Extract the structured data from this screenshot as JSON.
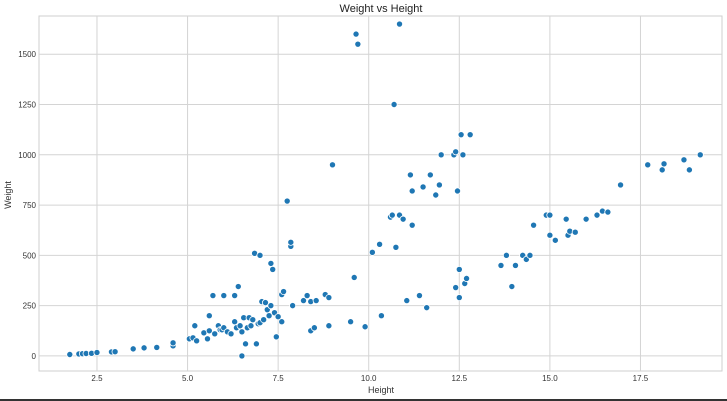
{
  "chart_data": {
    "type": "scatter",
    "title": "Weight vs Height",
    "xlabel": "Height",
    "ylabel": "Weight",
    "xlim": [
      0.9,
      19.75
    ],
    "ylim": [
      -75,
      1690
    ],
    "xticks": [
      2.5,
      5.0,
      7.5,
      10.0,
      12.5,
      15.0,
      17.5
    ],
    "xtick_labels": [
      "2.5",
      "5.0",
      "7.5",
      "10.0",
      "12.5",
      "15.0",
      "17.5"
    ],
    "yticks": [
      0,
      250,
      500,
      750,
      1000,
      1250,
      1500
    ],
    "ytick_labels": [
      "0",
      "250",
      "500",
      "750",
      "1000",
      "1250",
      "1500"
    ],
    "grid": true,
    "point_color": "#1f77b4",
    "points": [
      [
        1.75,
        7
      ],
      [
        2.0,
        10
      ],
      [
        2.1,
        11
      ],
      [
        2.2,
        12
      ],
      [
        2.35,
        13
      ],
      [
        2.5,
        17
      ],
      [
        2.9,
        20
      ],
      [
        3.0,
        21
      ],
      [
        3.5,
        35
      ],
      [
        3.8,
        40
      ],
      [
        4.15,
        42
      ],
      [
        4.6,
        50
      ],
      [
        4.6,
        65
      ],
      [
        5.05,
        85
      ],
      [
        5.15,
        90
      ],
      [
        5.25,
        75
      ],
      [
        5.2,
        150
      ],
      [
        5.45,
        115
      ],
      [
        5.55,
        85
      ],
      [
        5.6,
        125
      ],
      [
        5.6,
        200
      ],
      [
        5.7,
        300
      ],
      [
        5.75,
        110
      ],
      [
        5.85,
        150
      ],
      [
        5.9,
        130
      ],
      [
        5.95,
        130
      ],
      [
        6.0,
        300
      ],
      [
        6.0,
        140
      ],
      [
        6.1,
        120
      ],
      [
        6.2,
        110
      ],
      [
        6.3,
        300
      ],
      [
        6.3,
        170
      ],
      [
        6.35,
        140
      ],
      [
        6.4,
        345
      ],
      [
        6.45,
        150
      ],
      [
        6.5,
        120
      ],
      [
        6.5,
        0
      ],
      [
        6.55,
        190
      ],
      [
        6.6,
        60
      ],
      [
        6.65,
        140
      ],
      [
        6.7,
        190
      ],
      [
        6.75,
        150
      ],
      [
        6.8,
        180
      ],
      [
        6.85,
        510
      ],
      [
        6.9,
        60
      ],
      [
        6.95,
        160
      ],
      [
        7.0,
        500
      ],
      [
        7.0,
        165
      ],
      [
        7.05,
        270
      ],
      [
        7.1,
        180
      ],
      [
        7.15,
        265
      ],
      [
        7.2,
        230
      ],
      [
        7.25,
        200
      ],
      [
        7.3,
        460
      ],
      [
        7.35,
        430
      ],
      [
        7.3,
        250
      ],
      [
        7.4,
        215
      ],
      [
        7.45,
        95
      ],
      [
        7.5,
        195
      ],
      [
        7.6,
        170
      ],
      [
        7.6,
        305
      ],
      [
        7.65,
        320
      ],
      [
        7.75,
        770
      ],
      [
        7.85,
        545
      ],
      [
        7.85,
        565
      ],
      [
        7.9,
        250
      ],
      [
        8.2,
        275
      ],
      [
        8.3,
        300
      ],
      [
        8.4,
        270
      ],
      [
        8.4,
        125
      ],
      [
        8.5,
        140
      ],
      [
        8.55,
        275
      ],
      [
        8.8,
        305
      ],
      [
        8.9,
        150
      ],
      [
        8.9,
        290
      ],
      [
        9.0,
        950
      ],
      [
        9.5,
        170
      ],
      [
        9.6,
        390
      ],
      [
        9.65,
        1600
      ],
      [
        9.7,
        1550
      ],
      [
        9.9,
        145
      ],
      [
        10.1,
        515
      ],
      [
        10.3,
        555
      ],
      [
        10.35,
        200
      ],
      [
        10.6,
        690
      ],
      [
        10.65,
        700
      ],
      [
        10.7,
        1250
      ],
      [
        10.75,
        540
      ],
      [
        10.85,
        1650
      ],
      [
        10.85,
        700
      ],
      [
        10.95,
        680
      ],
      [
        11.05,
        275
      ],
      [
        11.15,
        900
      ],
      [
        11.2,
        820
      ],
      [
        11.2,
        650
      ],
      [
        11.4,
        300
      ],
      [
        11.5,
        840
      ],
      [
        11.6,
        240
      ],
      [
        11.7,
        900
      ],
      [
        11.85,
        800
      ],
      [
        11.95,
        850
      ],
      [
        12.0,
        1000
      ],
      [
        12.35,
        1000
      ],
      [
        12.4,
        1015
      ],
      [
        12.4,
        340
      ],
      [
        12.45,
        820
      ],
      [
        12.5,
        430
      ],
      [
        12.5,
        290
      ],
      [
        12.55,
        1100
      ],
      [
        12.6,
        1000
      ],
      [
        12.65,
        360
      ],
      [
        12.7,
        385
      ],
      [
        12.8,
        1100
      ],
      [
        13.65,
        450
      ],
      [
        13.8,
        500
      ],
      [
        13.95,
        345
      ],
      [
        14.05,
        450
      ],
      [
        14.25,
        500
      ],
      [
        14.35,
        480
      ],
      [
        14.45,
        500
      ],
      [
        14.55,
        650
      ],
      [
        14.9,
        700
      ],
      [
        15.0,
        700
      ],
      [
        15.0,
        600
      ],
      [
        15.15,
        575
      ],
      [
        15.45,
        680
      ],
      [
        15.5,
        600
      ],
      [
        15.55,
        620
      ],
      [
        15.7,
        615
      ],
      [
        16.0,
        680
      ],
      [
        16.3,
        700
      ],
      [
        16.45,
        720
      ],
      [
        16.6,
        715
      ],
      [
        16.95,
        850
      ],
      [
        17.7,
        950
      ],
      [
        18.1,
        925
      ],
      [
        18.15,
        955
      ],
      [
        18.7,
        975
      ],
      [
        18.85,
        925
      ],
      [
        19.15,
        1000
      ]
    ]
  }
}
